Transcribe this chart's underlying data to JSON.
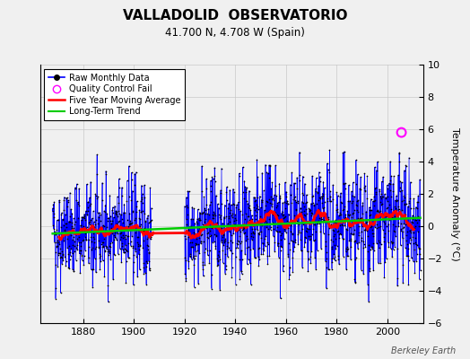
{
  "title": "VALLADOLID  OBSERVATORIO",
  "subtitle": "41.700 N, 4.708 W (Spain)",
  "ylabel": "Temperature Anomaly (°C)",
  "credit": "Berkeley Earth",
  "ylim": [
    -6,
    10
  ],
  "yticks": [
    -6,
    -4,
    -2,
    0,
    2,
    4,
    6,
    8,
    10
  ],
  "xlim": [
    1863,
    2014
  ],
  "xticks": [
    1880,
    1900,
    1920,
    1940,
    1960,
    1980,
    2000
  ],
  "line_color": "#0000ff",
  "marker_color": "#000000",
  "moving_avg_color": "#ff0000",
  "trend_color": "#00cc00",
  "qc_color": "#ff00ff",
  "bg_color": "#f0f0f0",
  "grid_color": "#c8c8c8",
  "seed": 42,
  "start_year": 1868,
  "end_year": 2012,
  "gap_start": 1907,
  "gap_end": 1920,
  "noise_scale": 1.5,
  "trend_slope": 0.006,
  "qc_fail_year": 2005.5,
  "qc_fail_value": 5.8
}
